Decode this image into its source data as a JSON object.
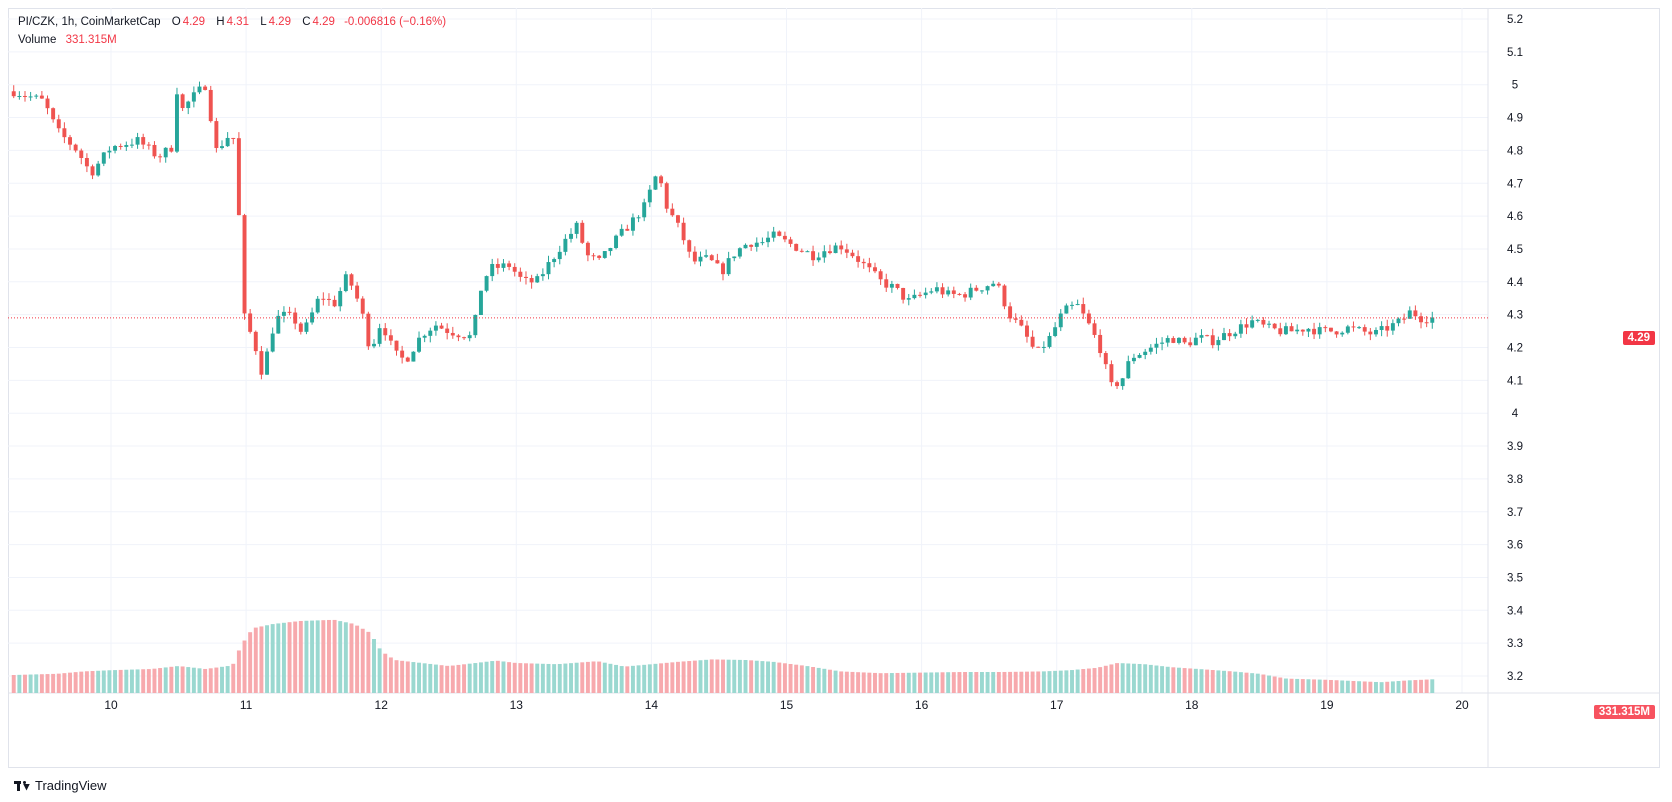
{
  "header": {
    "symbol": "PI/CZK, 1h, CoinMarketCap",
    "o_label": "O",
    "o_value": "4.29",
    "h_label": "H",
    "h_value": "4.31",
    "l_label": "L",
    "l_value": "4.29",
    "c_label": "C",
    "c_value": "4.29",
    "change": "-0.006816 (−0.16%)",
    "volume_label": "Volume",
    "volume_value": "331.315M"
  },
  "last_price_tag": "4.29",
  "last_volume_tag": "331.315M",
  "footer_brand": "TradingView",
  "colors": {
    "up": "#26a69a",
    "down": "#ef5350",
    "vol_up": "#9ad8d0",
    "vol_down": "#f7a9ad",
    "grid": "#f0f3fa"
  },
  "chart_data": {
    "type": "candlestick",
    "title": "PI/CZK, 1h, CoinMarketCap",
    "y_ticks": [
      "5.2",
      "5.1",
      "5",
      "4.9",
      "4.8",
      "4.7",
      "4.6",
      "4.5",
      "4.4",
      "4.3",
      "4.2",
      "4.1",
      "4",
      "3.9",
      "3.8",
      "3.7",
      "3.6",
      "3.5",
      "3.4",
      "3.3",
      "3.2"
    ],
    "ylim": [
      3.15,
      5.22
    ],
    "x_ticks": [
      "10",
      "11",
      "12",
      "13",
      "14",
      "15",
      "16",
      "17",
      "18",
      "19",
      "20"
    ],
    "x_unit": "day of month (hourly candles)",
    "close_path": [
      [
        9.28,
        4.98
      ],
      [
        9.5,
        4.95
      ],
      [
        9.6,
        4.86
      ],
      [
        9.75,
        4.8
      ],
      [
        9.85,
        4.73
      ],
      [
        10.0,
        4.81
      ],
      [
        10.2,
        4.83
      ],
      [
        10.35,
        4.78
      ],
      [
        10.45,
        4.81
      ],
      [
        10.48,
        5.0
      ],
      [
        10.52,
        4.92
      ],
      [
        10.6,
        4.96
      ],
      [
        10.7,
        5.0
      ],
      [
        10.78,
        4.8
      ],
      [
        10.88,
        4.85
      ],
      [
        10.92,
        4.83
      ],
      [
        10.95,
        4.57
      ],
      [
        10.98,
        4.3
      ],
      [
        11.0,
        4.28
      ],
      [
        11.07,
        4.2
      ],
      [
        11.12,
        4.12
      ],
      [
        11.2,
        4.26
      ],
      [
        11.25,
        4.3
      ],
      [
        11.35,
        4.29
      ],
      [
        11.42,
        4.24
      ],
      [
        11.55,
        4.36
      ],
      [
        11.65,
        4.33
      ],
      [
        11.75,
        4.42
      ],
      [
        11.85,
        4.32
      ],
      [
        11.92,
        4.19
      ],
      [
        12.0,
        4.28
      ],
      [
        12.1,
        4.18
      ],
      [
        12.18,
        4.16
      ],
      [
        12.3,
        4.24
      ],
      [
        12.4,
        4.27
      ],
      [
        12.5,
        4.25
      ],
      [
        12.6,
        4.24
      ],
      [
        12.68,
        4.23
      ],
      [
        12.72,
        4.36
      ],
      [
        12.8,
        4.44
      ],
      [
        12.95,
        4.45
      ],
      [
        13.05,
        4.4
      ],
      [
        13.15,
        4.4
      ],
      [
        13.25,
        4.46
      ],
      [
        13.35,
        4.52
      ],
      [
        13.45,
        4.57
      ],
      [
        13.52,
        4.48
      ],
      [
        13.62,
        4.46
      ],
      [
        13.72,
        4.52
      ],
      [
        13.85,
        4.58
      ],
      [
        13.95,
        4.63
      ],
      [
        14.05,
        4.74
      ],
      [
        14.1,
        4.64
      ],
      [
        14.22,
        4.55
      ],
      [
        14.3,
        4.46
      ],
      [
        14.42,
        4.47
      ],
      [
        14.52,
        4.43
      ],
      [
        14.62,
        4.49
      ],
      [
        14.72,
        4.52
      ],
      [
        14.82,
        4.52
      ],
      [
        14.9,
        4.54
      ],
      [
        15.0,
        4.52
      ],
      [
        15.1,
        4.5
      ],
      [
        15.2,
        4.48
      ],
      [
        15.3,
        4.5
      ],
      [
        15.4,
        4.51
      ],
      [
        15.5,
        4.48
      ],
      [
        15.6,
        4.44
      ],
      [
        15.7,
        4.4
      ],
      [
        15.8,
        4.38
      ],
      [
        15.9,
        4.34
      ],
      [
        16.0,
        4.36
      ],
      [
        16.1,
        4.38
      ],
      [
        16.2,
        4.36
      ],
      [
        16.3,
        4.36
      ],
      [
        16.42,
        4.38
      ],
      [
        16.55,
        4.4
      ],
      [
        16.65,
        4.3
      ],
      [
        16.75,
        4.25
      ],
      [
        16.85,
        4.18
      ],
      [
        16.95,
        4.23
      ],
      [
        17.05,
        4.31
      ],
      [
        17.15,
        4.33
      ],
      [
        17.25,
        4.26
      ],
      [
        17.32,
        4.2
      ],
      [
        17.4,
        4.08
      ],
      [
        17.48,
        4.1
      ],
      [
        17.55,
        4.17
      ],
      [
        17.65,
        4.19
      ],
      [
        17.75,
        4.21
      ],
      [
        17.85,
        4.23
      ],
      [
        17.95,
        4.21
      ],
      [
        18.05,
        4.23
      ],
      [
        18.15,
        4.22
      ],
      [
        18.25,
        4.24
      ],
      [
        18.35,
        4.26
      ],
      [
        18.45,
        4.28
      ],
      [
        18.55,
        4.26
      ],
      [
        18.65,
        4.25
      ],
      [
        18.75,
        4.25
      ],
      [
        18.85,
        4.26
      ],
      [
        18.95,
        4.25
      ],
      [
        19.05,
        4.25
      ],
      [
        19.15,
        4.26
      ],
      [
        19.25,
        4.25
      ],
      [
        19.35,
        4.24
      ],
      [
        19.45,
        4.26
      ],
      [
        19.55,
        4.28
      ],
      [
        19.62,
        4.31
      ],
      [
        19.7,
        4.29
      ],
      [
        19.8,
        4.29
      ]
    ],
    "volume_path": [
      [
        9.28,
        0.3
      ],
      [
        9.6,
        0.32
      ],
      [
        9.8,
        0.36
      ],
      [
        10.0,
        0.38
      ],
      [
        10.3,
        0.4
      ],
      [
        10.5,
        0.45
      ],
      [
        10.7,
        0.4
      ],
      [
        10.9,
        0.46
      ],
      [
        10.96,
        0.78
      ],
      [
        11.05,
        1.08
      ],
      [
        11.2,
        1.15
      ],
      [
        11.4,
        1.2
      ],
      [
        11.65,
        1.22
      ],
      [
        11.8,
        1.15
      ],
      [
        11.92,
        1.0
      ],
      [
        12.0,
        0.7
      ],
      [
        12.1,
        0.55
      ],
      [
        12.3,
        0.5
      ],
      [
        12.5,
        0.45
      ],
      [
        12.7,
        0.5
      ],
      [
        12.85,
        0.54
      ],
      [
        13.0,
        0.5
      ],
      [
        13.3,
        0.48
      ],
      [
        13.6,
        0.53
      ],
      [
        13.8,
        0.44
      ],
      [
        14.0,
        0.48
      ],
      [
        14.2,
        0.52
      ],
      [
        14.45,
        0.56
      ],
      [
        14.7,
        0.55
      ],
      [
        14.9,
        0.52
      ],
      [
        15.15,
        0.45
      ],
      [
        15.4,
        0.36
      ],
      [
        15.7,
        0.33
      ],
      [
        16.0,
        0.34
      ],
      [
        16.3,
        0.35
      ],
      [
        16.6,
        0.35
      ],
      [
        16.9,
        0.36
      ],
      [
        17.1,
        0.38
      ],
      [
        17.3,
        0.42
      ],
      [
        17.45,
        0.5
      ],
      [
        17.65,
        0.48
      ],
      [
        17.85,
        0.43
      ],
      [
        18.05,
        0.4
      ],
      [
        18.3,
        0.36
      ],
      [
        18.5,
        0.32
      ],
      [
        18.7,
        0.24
      ],
      [
        19.0,
        0.22
      ],
      [
        19.4,
        0.18
      ],
      [
        19.6,
        0.21
      ],
      [
        19.8,
        0.23
      ]
    ],
    "last_price": 4.29,
    "last_volume": "331.315M"
  }
}
